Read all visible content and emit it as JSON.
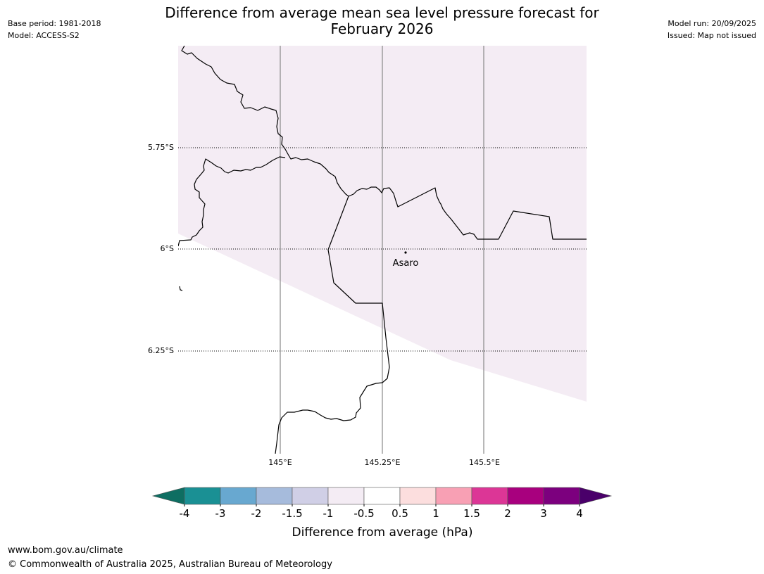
{
  "header": {
    "left": [
      "Base period: 1981-2018",
      "Model: ACCESS-S2"
    ],
    "right": [
      "Model run: 20/09/2025",
      "Issued: Map not issued"
    ],
    "title_line1": "Difference from average mean sea level pressure forecast for",
    "title_line2": "February 2026"
  },
  "map": {
    "lat_labels": [
      "5.75°S",
      "6°S",
      "6.25°S"
    ],
    "lon_labels": [
      "145°E",
      "145.25°E",
      "145.5°E"
    ],
    "place": "Asaro",
    "fill_color": "#f4ecf4"
  },
  "colorbar": {
    "ticks": [
      "-4",
      "-3",
      "-2",
      "-1.5",
      "-1",
      "-0.5",
      "0.5",
      "1",
      "1.5",
      "2",
      "3",
      "4"
    ],
    "colors": [
      "#0e6e62",
      "#1a9094",
      "#68a8d0",
      "#a6bbdc",
      "#d0cfe6",
      "#f4ecf4",
      "#ffffff",
      "#fcdede",
      "#f8a0b4",
      "#dc3696",
      "#a8007e",
      "#7c007e",
      "#4a006a"
    ],
    "label": "Difference from average (hPa)"
  },
  "footer": {
    "url": "www.bom.gov.au/climate",
    "copyright": "© Commonwealth of Australia 2025, Australian Bureau of Meteorology"
  }
}
